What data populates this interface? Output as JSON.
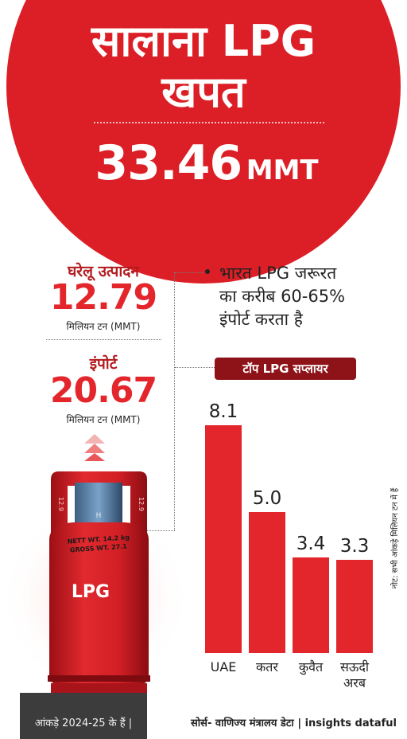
{
  "hero": {
    "title_line1": "सालाना LPG",
    "title_line2": "खपत",
    "value": "33.46",
    "unit": "MMT"
  },
  "stats": {
    "domestic_label": "घरेलू उत्पादन",
    "domestic_value": "12.79",
    "domestic_unit": "मिलियन टन (MMT)",
    "import_label": "इंपोर्ट",
    "import_value": "20.67",
    "import_unit": "मिलियन टन (MMT)"
  },
  "note": {
    "line1": "भारत LPG जरूरत",
    "line2": "का करीब 60-65%",
    "line3": "इंपोर्ट करता है"
  },
  "cylinder": {
    "label": "LPG",
    "badge_left": "12.9",
    "badge_right": "12.9",
    "tare_line1": "NETT WT. 14.2 kg",
    "tare_line2": "GROSS WT. 27.1"
  },
  "chart_data": {
    "type": "bar",
    "title": "टॉप LPG सप्लायर",
    "categories": [
      "UAE",
      "कतर",
      "कुवैत",
      "सऊदी अरब"
    ],
    "categories_display": [
      [
        "UAE"
      ],
      [
        "कतर"
      ],
      [
        "कुवैत"
      ],
      [
        "सऊदी",
        "अरब"
      ]
    ],
    "values": [
      8.1,
      5.0,
      3.4,
      3.3
    ],
    "value_labels": [
      "8.1",
      "5.0",
      "3.4",
      "3.3"
    ],
    "ylim": [
      0,
      8.1
    ],
    "grid": false,
    "legend": "none",
    "bar_color": "#e3262c"
  },
  "side_note": "नोट: सभी आंकड़े मिलियन टन में हैं",
  "footer": {
    "left": "आंकड़े 2024-25 के हैं |",
    "right": "सोर्स- वाणिज्य मंत्रालय डेटा | insights dataful"
  },
  "colors": {
    "brand_red": "#dc1f26",
    "dark_red": "#8e1319",
    "bar_red": "#e3262c"
  }
}
